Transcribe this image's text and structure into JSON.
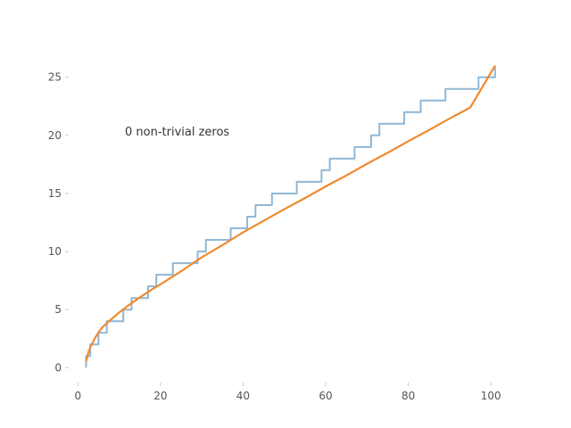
{
  "chart_data": {
    "type": "line",
    "title": "",
    "xlabel": "",
    "ylabel": "",
    "xlim": [
      -2,
      106
    ],
    "ylim": [
      -1.2,
      27.2
    ],
    "x_ticks": [
      0,
      20,
      40,
      60,
      80,
      100
    ],
    "y_ticks": [
      0,
      5,
      10,
      15,
      20,
      25
    ],
    "grid": false,
    "annotation": "0 non-trivial zeros",
    "series": [
      {
        "color": "#8fb7d6",
        "style": "step",
        "x": [
          2,
          3,
          5,
          7,
          11,
          13,
          17,
          19,
          23,
          29,
          31,
          37,
          41,
          43,
          47,
          53,
          59,
          61,
          67,
          71,
          73,
          79,
          83,
          89,
          97,
          101
        ],
        "values": [
          1,
          2,
          3,
          4,
          5,
          6,
          7,
          8,
          9,
          10,
          11,
          12,
          13,
          14,
          15,
          16,
          17,
          18,
          19,
          20,
          21,
          22,
          23,
          24,
          25,
          26
        ]
      },
      {
        "color": "#f08a2c",
        "style": "line",
        "x": [
          2,
          2.5,
          3,
          4,
          5,
          6,
          8,
          10,
          12,
          15,
          18,
          21,
          25,
          30,
          35,
          40,
          45,
          50,
          55,
          60,
          65,
          70,
          75,
          80,
          85,
          90,
          95,
          101
        ],
        "values": [
          0.55,
          1.25,
          1.75,
          2.45,
          3.05,
          3.5,
          4.15,
          4.75,
          5.3,
          6.05,
          6.75,
          7.4,
          8.3,
          9.5,
          10.55,
          11.65,
          12.65,
          13.65,
          14.6,
          15.6,
          16.55,
          17.55,
          18.5,
          19.5,
          20.45,
          21.45,
          22.4,
          26.0
        ]
      }
    ]
  }
}
